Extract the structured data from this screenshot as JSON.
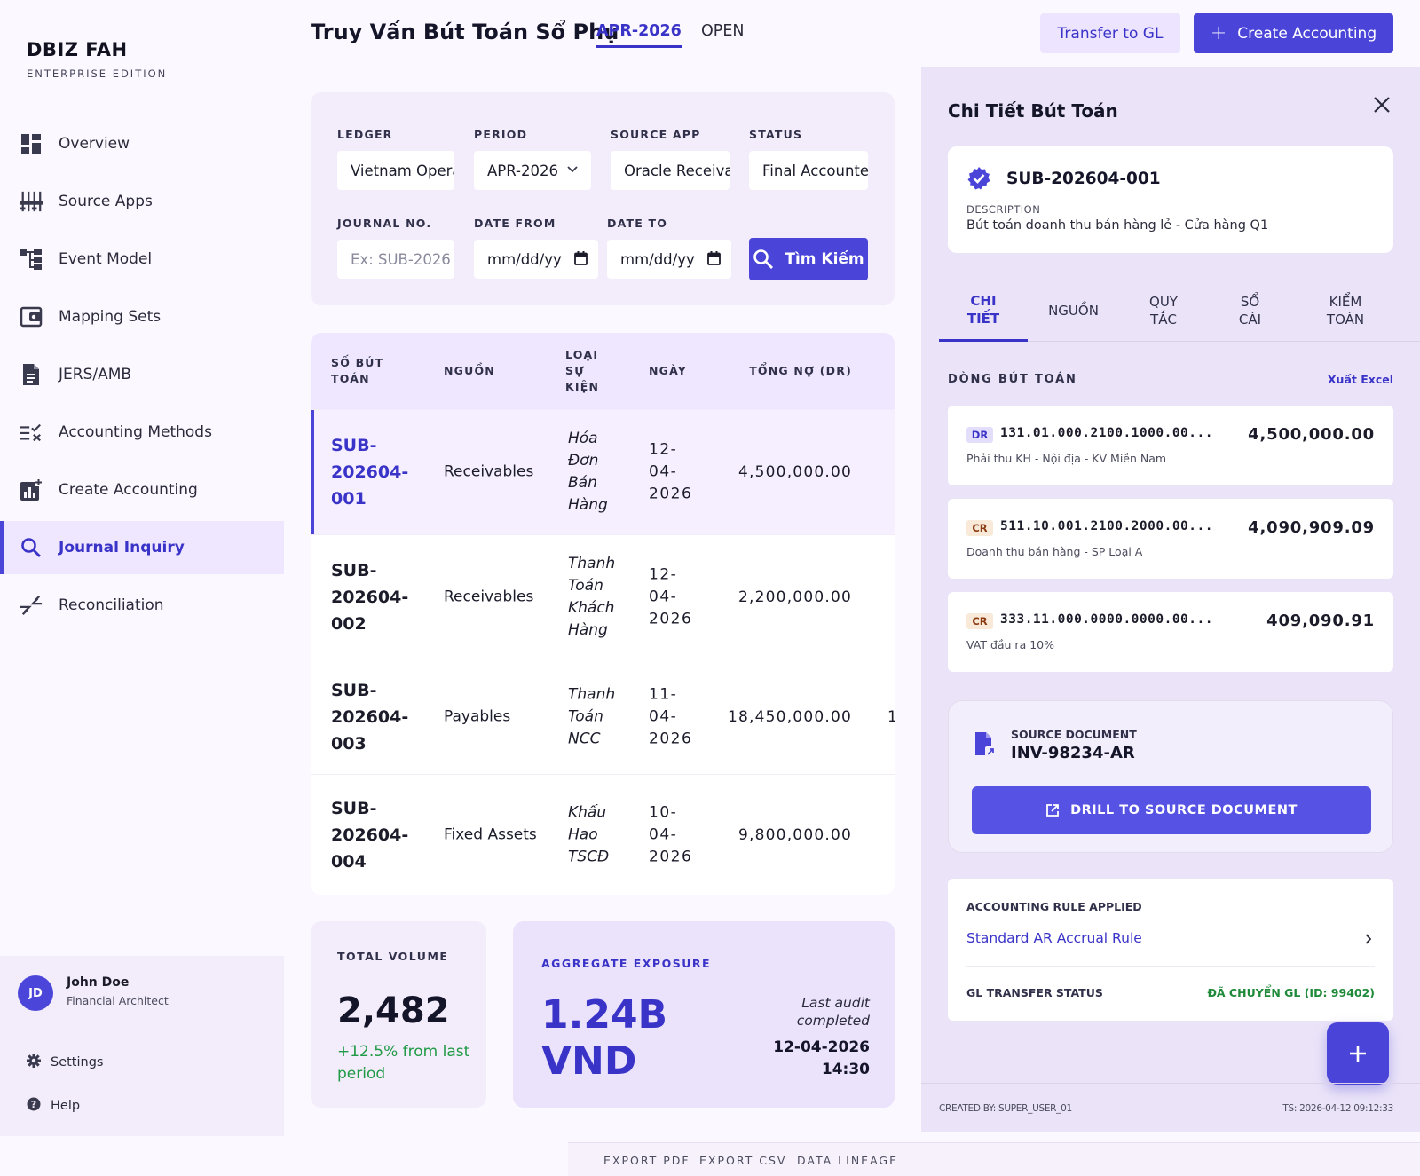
{
  "brand": {
    "title": "DBIZ FAH",
    "subtitle": "ENTERPRISE EDITION"
  },
  "nav": [
    {
      "label": "Overview",
      "icon": "dashboard-icon"
    },
    {
      "label": "Source Apps",
      "icon": "sliders-icon"
    },
    {
      "label": "Event Model",
      "icon": "hierarchy-icon"
    },
    {
      "label": "Mapping Sets",
      "icon": "wallet-icon"
    },
    {
      "label": "JERS/AMB",
      "icon": "document-icon"
    },
    {
      "label": "Accounting Methods",
      "icon": "checklist-icon"
    },
    {
      "label": "Create Accounting",
      "icon": "chart-add-icon"
    },
    {
      "label": "Journal Inquiry",
      "icon": "search-icon",
      "active": true
    },
    {
      "label": "Reconciliation",
      "icon": "compare-arrows-icon"
    }
  ],
  "user": {
    "initials": "JD",
    "name": "John Doe",
    "role": "Financial Architect"
  },
  "utility": {
    "settings": "Settings",
    "help": "Help"
  },
  "header": {
    "title": "Truy Vấn Bút Toán Sổ Phụ",
    "period_tab": "APR-2026",
    "status_tab": "OPEN",
    "transfer_btn": "Transfer to GL",
    "create_btn": "Create Accounting"
  },
  "filters": {
    "ledger_label": "LEDGER",
    "ledger_value": "Vietnam Operations",
    "period_label": "PERIOD",
    "period_value": "APR-2026",
    "source_label": "SOURCE APP",
    "source_value": "Oracle Receivables",
    "status_label": "STATUS",
    "status_value": "Final Accounted",
    "journal_label": "JOURNAL NO.",
    "journal_placeholder": "Ex: SUB-2026",
    "date_from_label": "DATE FROM",
    "date_from_value": "mm/dd/yy",
    "date_to_label": "DATE TO",
    "date_to_value": "mm/dd/yy",
    "search_btn": "Tìm Kiếm"
  },
  "table": {
    "headers": {
      "no": "SỐ BÚT TOÁN",
      "source": "NGUỒN",
      "event": "LOẠI SỰ KIỆN",
      "date": "NGÀY",
      "dr": "TỔNG NỢ (DR)"
    },
    "rows": [
      {
        "no": "SUB-202604-001",
        "source": "Receivables",
        "event": "Hóa Đơn Bán Hàng",
        "date": "12-04-2026",
        "dr": "4,500,000.00",
        "cut": ""
      },
      {
        "no": "SUB-202604-002",
        "source": "Receivables",
        "event": "Thanh Toán Khách Hàng",
        "date": "12-04-2026",
        "dr": "2,200,000.00",
        "cut": ""
      },
      {
        "no": "SUB-202604-003",
        "source": "Payables",
        "event": "Thanh Toán NCC",
        "date": "11-04-2026",
        "dr": "18,450,000.00",
        "cut": "1"
      },
      {
        "no": "SUB-202604-004",
        "source": "Fixed Assets",
        "event": "Khấu Hao TSCĐ",
        "date": "10-04-2026",
        "dr": "9,800,000.00",
        "cut": ""
      }
    ]
  },
  "stats": {
    "volume_label": "TOTAL VOLUME",
    "volume_value": "2,482",
    "volume_delta": "+12.5% from last period",
    "exposure_label": "AGGREGATE EXPOSURE",
    "exposure_value": "1.24B VND",
    "audit_label": "Last audit completed",
    "audit_date": "12-04-2026 14:30"
  },
  "footer": {
    "export_pdf": "EXPORT PDF",
    "export_csv": "EXPORT CSV",
    "lineage": "DATA LINEAGE"
  },
  "detail": {
    "title": "Chi Tiết Bút Toán",
    "journal_id": "SUB-202604-001",
    "desc_label": "DESCRIPTION",
    "desc": "Bút toán doanh thu bán hàng lẻ - Cửa hàng Q1",
    "tabs": [
      "CHI TIẾT",
      "NGUỒN",
      "QUY TẮC",
      "SỔ CÁI",
      "KIỂM TOÁN"
    ],
    "lines_label": "DÒNG BÚT TOÁN",
    "export_excel": "Xuất Excel",
    "lines": [
      {
        "type": "DR",
        "account": "131.01.000.2100.1000.00...",
        "desc": "Phải thu KH - Nội địa - KV Miền Nam",
        "amount": "4,500,000.00"
      },
      {
        "type": "CR",
        "account": "511.10.001.2100.2000.00...",
        "desc": "Doanh thu bán hàng - SP Loại A",
        "amount": "4,090,909.09"
      },
      {
        "type": "CR",
        "account": "333.11.000.0000.0000.00...",
        "desc": "VAT đầu ra 10%",
        "amount": "409,090.91"
      }
    ],
    "source_doc_label": "SOURCE DOCUMENT",
    "source_doc": "INV-98234-AR",
    "drill_btn": "DRILL TO SOURCE DOCUMENT",
    "rule_label": "ACCOUNTING RULE APPLIED",
    "rule_link": "Standard AR Accrual Rule",
    "gl_label": "GL TRANSFER STATUS",
    "gl_status": "ĐÃ CHUYỂN GL (ID: 99402)",
    "created_by": "CREATED BY: SUPER_USER_01",
    "timestamp": "TS: 2026-04-12 09:12:33"
  },
  "colors": {
    "accent": "#4a44d8",
    "success": "#1f8a3a",
    "panel": "#ebe4f8",
    "sidebar_active": "#efe6ff"
  }
}
